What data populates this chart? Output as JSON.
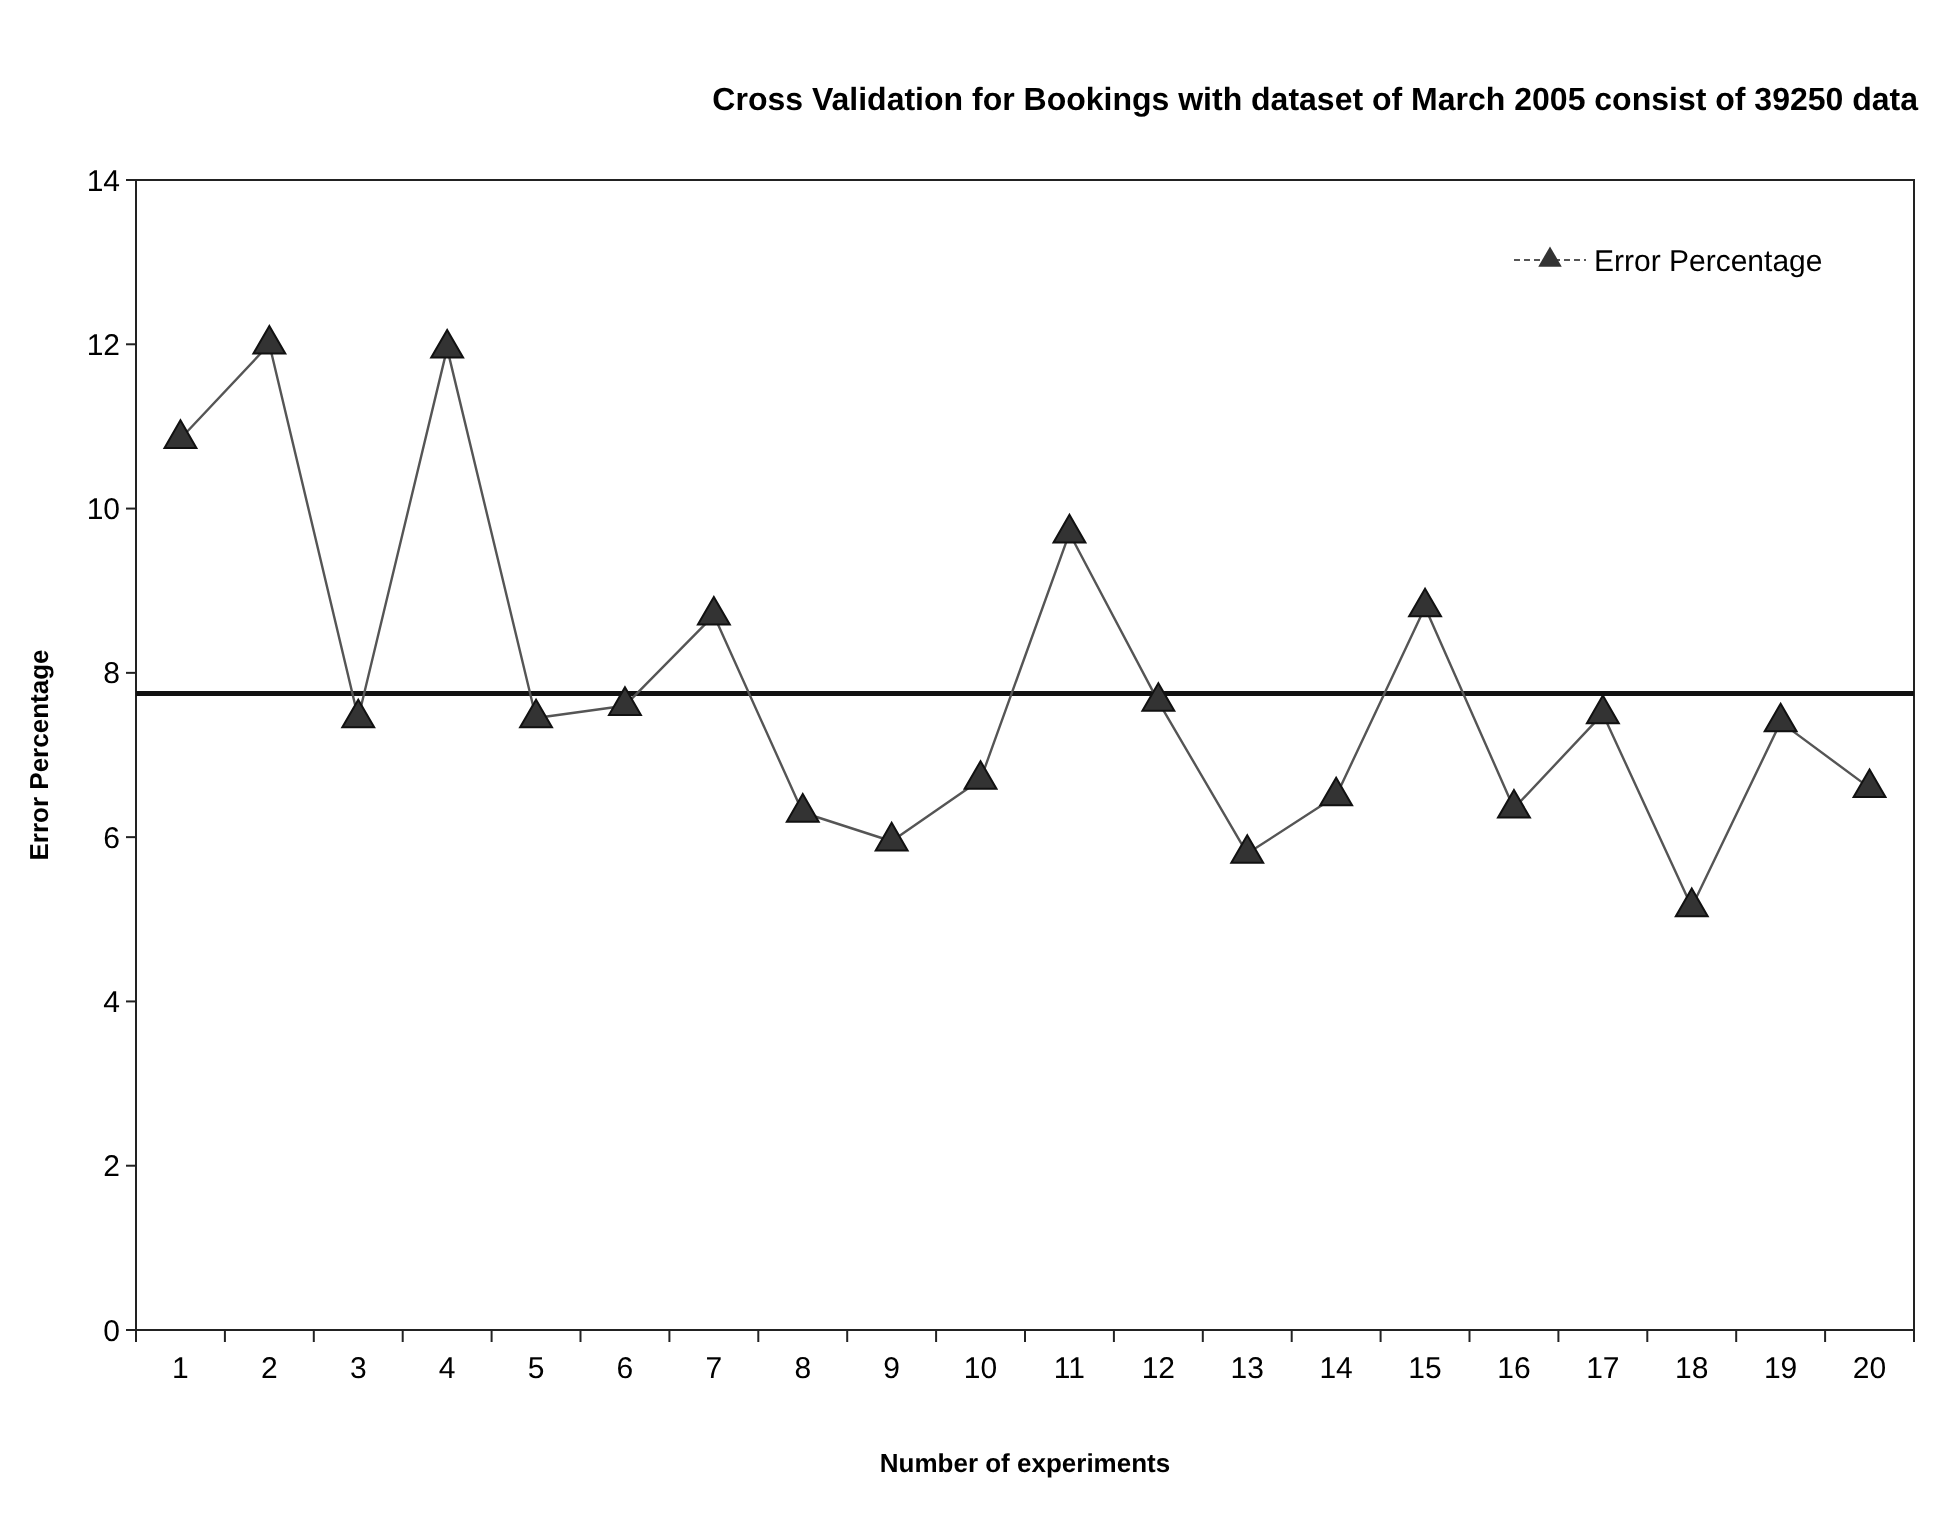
{
  "chart_data": {
    "type": "line",
    "title": "Cross Validation for Bookings with dataset of March 2005 consist of 39250 data",
    "xlabel": "Number of experiments",
    "ylabel": "Error Percentage",
    "categories": [
      "1",
      "2",
      "3",
      "4",
      "5",
      "6",
      "7",
      "8",
      "9",
      "10",
      "11",
      "12",
      "13",
      "14",
      "15",
      "16",
      "17",
      "18",
      "19",
      "20"
    ],
    "series": [
      {
        "name": "Error Percentage",
        "color": "#555555",
        "values": [
          10.85,
          12.0,
          7.45,
          11.95,
          7.45,
          7.6,
          8.7,
          6.3,
          5.95,
          6.7,
          9.7,
          7.65,
          5.8,
          6.5,
          8.8,
          6.35,
          7.5,
          5.15,
          7.4,
          6.6
        ]
      }
    ],
    "ylim": [
      0,
      14
    ],
    "yticks": [
      0,
      2,
      4,
      6,
      8,
      10,
      12,
      14
    ],
    "ref_lines": [
      {
        "axis": "y",
        "value": 7.75,
        "color": "#111111"
      }
    ],
    "marker": "triangle",
    "legend": "top right",
    "grid": false
  }
}
